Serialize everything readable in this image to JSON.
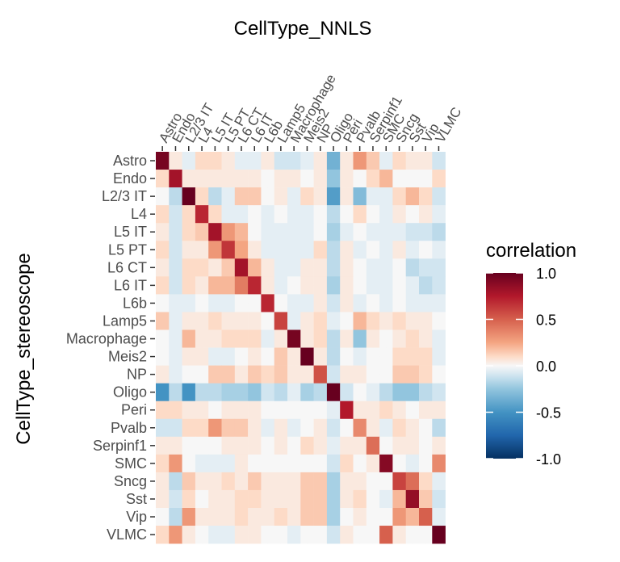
{
  "chart_data": {
    "type": "heatmap",
    "title": "CellType_NNLS",
    "xlabel": "",
    "ylabel": "CellType_stereoscope",
    "x_categories": [
      "Astro",
      "Endo",
      "L2/3 IT",
      "L4",
      "L5 IT",
      "L5 PT",
      "L6 CT",
      "L6 IT",
      "L6b",
      "Lamp5",
      "Macrophage",
      "Meis2",
      "NP",
      "Oligo",
      "Peri",
      "Pvalb",
      "Serpinf1",
      "SMC",
      "Sncg",
      "Sst",
      "Vip",
      "VLMC"
    ],
    "y_categories": [
      "Astro",
      "Endo",
      "L2/3 IT",
      "L4",
      "L5 IT",
      "L5 PT",
      "L6 CT",
      "L6 IT",
      "L6b",
      "Lamp5",
      "Macrophage",
      "Meis2",
      "NP",
      "Oligo",
      "Peri",
      "Pvalb",
      "Serpinf1",
      "SMC",
      "Sncg",
      "Sst",
      "Vip",
      "VLMC"
    ],
    "values": [
      [
        0.95,
        0.05,
        -0.05,
        0.1,
        0.1,
        0.05,
        -0.05,
        -0.05,
        0.05,
        -0.1,
        -0.1,
        -0.05,
        0.05,
        -0.35,
        0.05,
        0.3,
        0.15,
        -0.05,
        0.1,
        0.05,
        0.05,
        -0.1
      ],
      [
        0.1,
        0.8,
        0.05,
        0.05,
        0.05,
        0.05,
        0.05,
        0.05,
        0.0,
        0.05,
        0.05,
        0.0,
        0.05,
        -0.25,
        0.05,
        0.0,
        0.1,
        0.2,
        0.0,
        0.0,
        0.0,
        0.1
      ],
      [
        0.0,
        -0.15,
        1.0,
        0.1,
        -0.15,
        -0.05,
        0.15,
        0.15,
        0.0,
        0.05,
        -0.05,
        0.1,
        0.05,
        -0.45,
        0.05,
        -0.3,
        -0.05,
        -0.05,
        0.1,
        0.2,
        0.1,
        -0.1
      ],
      [
        0.1,
        -0.1,
        0.1,
        0.7,
        0.1,
        -0.05,
        -0.05,
        0.0,
        -0.05,
        0.0,
        -0.05,
        -0.05,
        0.0,
        -0.15,
        0.0,
        0.1,
        0.0,
        -0.05,
        0.05,
        0.0,
        0.05,
        -0.05
      ],
      [
        0.05,
        -0.1,
        0.1,
        0.15,
        0.8,
        0.3,
        0.2,
        0.0,
        -0.05,
        -0.05,
        -0.05,
        -0.05,
        0.0,
        -0.2,
        -0.05,
        0.0,
        -0.05,
        -0.05,
        -0.05,
        -0.1,
        -0.1,
        -0.15
      ],
      [
        0.1,
        -0.1,
        0.05,
        0.05,
        0.3,
        0.65,
        0.25,
        0.05,
        -0.05,
        -0.05,
        -0.05,
        -0.05,
        0.1,
        -0.15,
        0.05,
        -0.05,
        0.0,
        -0.05,
        0.05,
        -0.05,
        0.0,
        -0.05
      ],
      [
        0.05,
        -0.1,
        0.1,
        0.1,
        0.05,
        0.15,
        0.8,
        0.2,
        0.05,
        -0.05,
        -0.05,
        0.05,
        0.05,
        -0.15,
        0.05,
        0.0,
        -0.05,
        -0.05,
        0.0,
        -0.15,
        -0.1,
        -0.1
      ],
      [
        0.1,
        -0.1,
        0.1,
        0.05,
        0.2,
        0.2,
        0.4,
        0.7,
        0.05,
        -0.05,
        0.0,
        0.05,
        0.05,
        -0.2,
        0.05,
        0.0,
        -0.05,
        -0.05,
        0.0,
        -0.05,
        -0.15,
        -0.1
      ],
      [
        0.0,
        -0.05,
        -0.05,
        0.0,
        -0.05,
        -0.05,
        0.0,
        0.0,
        0.7,
        0.0,
        -0.05,
        -0.05,
        0.05,
        -0.1,
        0.05,
        -0.05,
        0.0,
        -0.05,
        0.0,
        -0.05,
        -0.05,
        -0.05
      ],
      [
        0.15,
        -0.05,
        0.05,
        0.05,
        0.1,
        0.05,
        0.05,
        0.05,
        0.0,
        0.6,
        -0.05,
        0.05,
        0.1,
        -0.05,
        0.0,
        0.2,
        0.1,
        0.05,
        0.1,
        0.05,
        0.05,
        0.0
      ],
      [
        0.0,
        -0.05,
        0.2,
        0.05,
        0.05,
        0.1,
        0.1,
        0.1,
        -0.05,
        0.05,
        0.95,
        0.05,
        0.1,
        -0.15,
        0.05,
        -0.25,
        0.05,
        0.0,
        0.05,
        0.1,
        0.05,
        -0.05
      ],
      [
        0.0,
        -0.05,
        0.05,
        0.05,
        -0.05,
        -0.05,
        0.0,
        0.05,
        0.0,
        0.15,
        0.05,
        1.0,
        0.05,
        -0.15,
        0.0,
        -0.05,
        0.0,
        0.0,
        0.1,
        0.1,
        0.1,
        -0.05
      ],
      [
        0.05,
        -0.05,
        0.0,
        0.0,
        0.15,
        0.15,
        0.05,
        0.15,
        0.1,
        0.15,
        0.05,
        0.05,
        0.55,
        -0.1,
        0.05,
        0.05,
        0.0,
        0.0,
        0.15,
        0.15,
        0.1,
        0.0
      ],
      [
        -0.5,
        -0.15,
        -0.5,
        -0.15,
        -0.15,
        -0.2,
        -0.2,
        -0.25,
        -0.1,
        -0.15,
        -0.05,
        -0.2,
        -0.15,
        1.0,
        -0.1,
        0.0,
        -0.05,
        -0.15,
        -0.25,
        -0.25,
        -0.15,
        -0.1
      ],
      [
        0.1,
        0.1,
        0.05,
        0.05,
        0.0,
        0.05,
        0.05,
        0.05,
        0.0,
        0.0,
        0.0,
        0.0,
        0.0,
        -0.05,
        0.75,
        0.05,
        0.05,
        0.1,
        0.05,
        0.0,
        0.05,
        0.05
      ],
      [
        -0.1,
        -0.1,
        0.1,
        0.1,
        0.3,
        0.15,
        0.15,
        0.05,
        -0.05,
        0.05,
        -0.05,
        0.0,
        0.05,
        -0.1,
        0.0,
        0.35,
        0.05,
        -0.05,
        0.1,
        0.05,
        0.0,
        -0.15
      ],
      [
        0.05,
        0.05,
        0.0,
        0.0,
        0.0,
        0.05,
        0.05,
        0.05,
        0.0,
        0.05,
        0.0,
        0.1,
        0.05,
        -0.05,
        0.05,
        0.05,
        0.45,
        0.0,
        0.05,
        0.05,
        0.0,
        0.05
      ],
      [
        0.1,
        0.3,
        0.0,
        -0.05,
        -0.05,
        -0.05,
        0.05,
        0.0,
        0.0,
        0.0,
        0.0,
        0.0,
        0.0,
        -0.1,
        0.1,
        0.0,
        0.05,
        0.9,
        0.0,
        -0.05,
        0.0,
        0.35
      ],
      [
        0.05,
        -0.15,
        0.15,
        0.05,
        0.05,
        0.1,
        0.05,
        0.15,
        0.05,
        0.05,
        0.05,
        0.15,
        0.15,
        -0.2,
        0.05,
        0.05,
        0.0,
        0.0,
        0.6,
        0.45,
        0.1,
        -0.05
      ],
      [
        0.05,
        -0.1,
        0.1,
        0.0,
        0.05,
        0.05,
        0.1,
        0.1,
        0.05,
        0.05,
        0.05,
        0.15,
        0.15,
        -0.2,
        0.05,
        0.1,
        0.0,
        -0.05,
        0.2,
        0.85,
        0.15,
        -0.1
      ],
      [
        0.0,
        -0.15,
        0.3,
        0.05,
        0.05,
        0.05,
        0.1,
        0.05,
        0.05,
        0.1,
        0.05,
        0.15,
        0.15,
        -0.2,
        0.0,
        0.05,
        0.0,
        0.0,
        0.3,
        0.2,
        0.5,
        -0.05
      ],
      [
        0.1,
        0.3,
        0.05,
        0.0,
        -0.05,
        -0.05,
        0.05,
        0.05,
        0.0,
        0.0,
        -0.05,
        0.0,
        0.0,
        -0.1,
        0.05,
        0.0,
        0.0,
        0.5,
        0.05,
        0.0,
        0.0,
        1.0
      ]
    ],
    "legend": {
      "title": "correlation",
      "ticks": [
        1.0,
        0.5,
        0.0,
        -0.5,
        -1.0
      ],
      "tick_labels": [
        "1.0",
        "0.5",
        "0.0",
        "-0.5",
        "-1.0"
      ],
      "range": [
        -1.0,
        1.0
      ],
      "placement": "right"
    },
    "colors": {
      "high": "#67001f",
      "mid": "#f7f7f7",
      "low": "#053061"
    },
    "grid": true
  }
}
